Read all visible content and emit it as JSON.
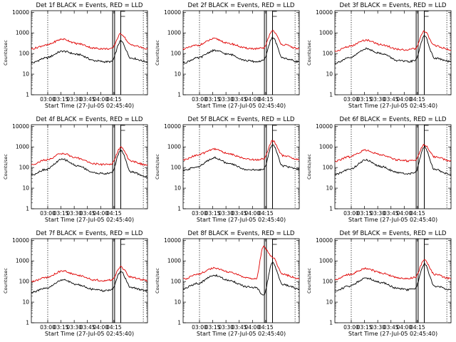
{
  "colors": {
    "events": "#000000",
    "lld": "#e00000",
    "axes": "#000000"
  },
  "chart_data": [
    {
      "type": "line",
      "title": "Det 1f BLACK = Events, RED = LLD",
      "xlabel": "Start Time (27-Jul-05 02:45:40)",
      "ylabel": "Counts/sec",
      "x_ticks": [
        "03:00",
        "03:15",
        "03:30",
        "03:45",
        "04:00",
        "04:15"
      ],
      "y_ticks": [
        "1",
        "10",
        "100",
        "1000",
        "10000"
      ],
      "yscale": "log",
      "ylim": [
        1,
        12000
      ],
      "grid": false,
      "series": [
        {
          "values": [
            35,
            60,
            130,
            90,
            45,
            40,
            40,
            400,
            60,
            40
          ]
        },
        {
          "values": [
            170,
            250,
            500,
            300,
            180,
            170,
            170,
            900,
            260,
            170
          ]
        }
      ]
    },
    {
      "type": "line",
      "title": "Det 2f BLACK = Events, RED = LLD",
      "xlabel": "Start Time (27-Jul-05 02:45:40)",
      "ylabel": "Counts/sec",
      "x_ticks": [
        "03:00",
        "03:15",
        "03:30",
        "03:45",
        "04:00",
        "04:15"
      ],
      "y_ticks": [
        "1",
        "10",
        "100",
        "1000",
        "10000"
      ],
      "yscale": "log",
      "ylim": [
        1,
        12000
      ],
      "grid": false,
      "series": [
        {
          "values": [
            35,
            60,
            140,
            90,
            45,
            40,
            45,
            600,
            60,
            40
          ]
        },
        {
          "values": [
            170,
            250,
            520,
            300,
            180,
            170,
            180,
            1300,
            270,
            170
          ]
        }
      ]
    },
    {
      "type": "line",
      "title": "Det 3f BLACK = Events, RED = LLD",
      "xlabel": "Start Time (27-Jul-05 02:45:40)",
      "ylabel": "Counts/sec",
      "x_ticks": [
        "03:00",
        "03:15",
        "03:30",
        "03:45",
        "04:00",
        "04:15"
      ],
      "y_ticks": [
        "1",
        "10",
        "100",
        "1000",
        "10000"
      ],
      "yscale": "log",
      "ylim": [
        1,
        12000
      ],
      "grid": false,
      "series": [
        {
          "values": [
            35,
            60,
            170,
            100,
            45,
            40,
            45,
            700,
            60,
            40
          ]
        },
        {
          "values": [
            130,
            220,
            450,
            270,
            160,
            150,
            170,
            1200,
            240,
            150
          ]
        }
      ]
    },
    {
      "type": "line",
      "title": "Det 4f BLACK = Events, RED = LLD",
      "xlabel": "Start Time (27-Jul-05 02:45:40)",
      "ylabel": "Counts/sec",
      "x_ticks": [
        "03:00",
        "03:15",
        "03:30",
        "03:45",
        "04:00",
        "04:15"
      ],
      "y_ticks": [
        "1",
        "10",
        "100",
        "1000",
        "10000"
      ],
      "yscale": "log",
      "ylim": [
        1,
        12000
      ],
      "grid": false,
      "series": [
        {
          "values": [
            45,
            80,
            250,
            120,
            55,
            50,
            55,
            700,
            60,
            35
          ]
        },
        {
          "values": [
            140,
            230,
            480,
            280,
            150,
            140,
            150,
            950,
            200,
            130
          ]
        }
      ]
    },
    {
      "type": "line",
      "title": "Det 5f BLACK = Events, RED = LLD",
      "xlabel": "Start Time (27-Jul-05 02:45:40)",
      "ylabel": "Counts/sec",
      "x_ticks": [
        "03:00",
        "03:15",
        "03:30",
        "03:45",
        "04:00",
        "04:15"
      ],
      "y_ticks": [
        "1",
        "10",
        "100",
        "1000",
        "10000"
      ],
      "yscale": "log",
      "ylim": [
        1,
        12000
      ],
      "grid": false,
      "series": [
        {
          "values": [
            70,
            110,
            300,
            150,
            80,
            75,
            80,
            1300,
            120,
            80
          ]
        },
        {
          "values": [
            230,
            400,
            800,
            450,
            260,
            240,
            260,
            2000,
            380,
            240
          ]
        }
      ]
    },
    {
      "type": "line",
      "title": "Det 6f BLACK = Events, RED = LLD",
      "xlabel": "Start Time (27-Jul-05 02:45:40)",
      "ylabel": "Counts/sec",
      "x_ticks": [
        "03:00",
        "03:15",
        "03:30",
        "03:45",
        "04:00",
        "04:15"
      ],
      "y_ticks": [
        "1",
        "10",
        "100",
        "1000",
        "10000"
      ],
      "yscale": "log",
      "ylim": [
        1,
        12000
      ],
      "grid": false,
      "series": [
        {
          "values": [
            45,
            80,
            230,
            110,
            55,
            50,
            55,
            1000,
            80,
            45
          ]
        },
        {
          "values": [
            200,
            330,
            700,
            400,
            230,
            210,
            230,
            1300,
            330,
            210
          ]
        }
      ]
    },
    {
      "type": "line",
      "title": "Det 7f BLACK = Events, RED = LLD",
      "xlabel": "Start Time (27-Jul-05 02:45:40)",
      "ylabel": "Counts/sec",
      "x_ticks": [
        "03:00",
        "03:15",
        "03:30",
        "03:45",
        "04:00",
        "04:15"
      ],
      "y_ticks": [
        "1",
        "10",
        "100",
        "1000",
        "10000"
      ],
      "yscale": "log",
      "ylim": [
        1,
        12000
      ],
      "grid": false,
      "series": [
        {
          "values": [
            30,
            45,
            120,
            70,
            40,
            35,
            40,
            300,
            50,
            35
          ]
        },
        {
          "values": [
            100,
            150,
            330,
            200,
            120,
            110,
            120,
            500,
            160,
            110
          ]
        }
      ]
    },
    {
      "type": "line",
      "title": "Det 8f BLACK = Events, RED = LLD",
      "xlabel": "Start Time (27-Jul-05 02:45:40)",
      "ylabel": "Counts/sec",
      "x_ticks": [
        "03:00",
        "03:15",
        "03:30",
        "03:45",
        "04:00",
        "04:15"
      ],
      "y_ticks": [
        "1",
        "10",
        "100",
        "1000",
        "10000"
      ],
      "yscale": "log",
      "ylim": [
        1,
        12000
      ],
      "grid": false,
      "series": [
        {
          "values": [
            45,
            80,
            200,
            110,
            55,
            50,
            20,
            800,
            70,
            45
          ]
        },
        {
          "values": [
            130,
            230,
            450,
            280,
            150,
            140,
            5000,
            1500,
            220,
            140
          ]
        }
      ]
    },
    {
      "type": "line",
      "title": "Det 9f BLACK = Events, RED = LLD",
      "xlabel": "Start Time (27-Jul-05 02:45:40)",
      "ylabel": "Counts/sec",
      "x_ticks": [
        "03:00",
        "03:15",
        "03:30",
        "03:45",
        "04:00",
        "04:15"
      ],
      "y_ticks": [
        "1",
        "10",
        "100",
        "1000",
        "10000"
      ],
      "yscale": "log",
      "ylim": [
        1,
        12000
      ],
      "grid": false,
      "series": [
        {
          "values": [
            35,
            60,
            150,
            90,
            45,
            40,
            45,
            700,
            60,
            40
          ]
        },
        {
          "values": [
            130,
            220,
            430,
            260,
            150,
            140,
            160,
            1100,
            220,
            140
          ]
        }
      ]
    }
  ]
}
